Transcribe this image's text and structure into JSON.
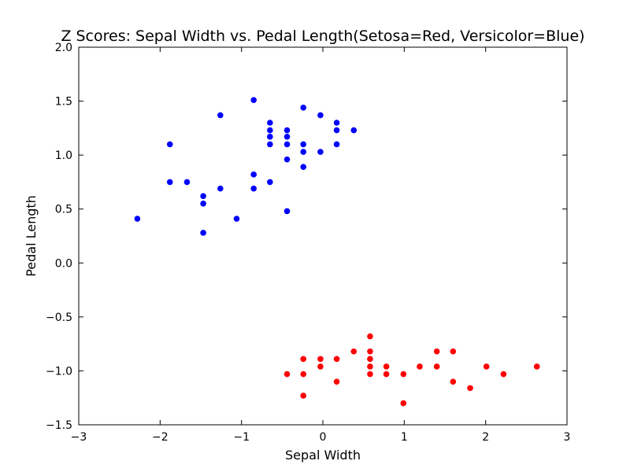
{
  "chart_data": {
    "type": "scatter",
    "title": "Z Scores: Sepal Width vs. Pedal Length(Setosa=Red, Versicolor=Blue)",
    "xlabel": "Sepal Width",
    "ylabel": "Pedal Length",
    "xlim": [
      -3,
      3
    ],
    "ylim": [
      -1.5,
      2.0
    ],
    "x_ticks": [
      -3,
      -2,
      -1,
      0,
      1,
      2,
      3
    ],
    "x_tick_labels": [
      "−3",
      "−2",
      "−1",
      "0",
      "1",
      "2",
      "3"
    ],
    "y_ticks": [
      -1.5,
      -1.0,
      -0.5,
      0.0,
      0.5,
      1.0,
      1.5,
      2.0
    ],
    "y_tick_labels": [
      "−1.5",
      "−1.0",
      "−0.5",
      "0.0",
      "0.5",
      "1.0",
      "1.5",
      "2.0"
    ],
    "grid": false,
    "series": [
      {
        "name": "Versicolor",
        "color": "#0000ff",
        "points": [
          [
            -2.28,
            0.41
          ],
          [
            -1.88,
            1.1
          ],
          [
            -1.88,
            0.75
          ],
          [
            -1.67,
            0.75
          ],
          [
            -1.47,
            0.62
          ],
          [
            -1.47,
            0.55
          ],
          [
            -1.47,
            0.28
          ],
          [
            -1.26,
            1.37
          ],
          [
            -1.26,
            0.69
          ],
          [
            -1.06,
            0.41
          ],
          [
            -0.85,
            1.51
          ],
          [
            -0.85,
            0.82
          ],
          [
            -0.85,
            0.69
          ],
          [
            -0.65,
            1.3
          ],
          [
            -0.65,
            1.23
          ],
          [
            -0.65,
            1.17
          ],
          [
            -0.65,
            1.1
          ],
          [
            -0.65,
            0.75
          ],
          [
            -0.44,
            1.23
          ],
          [
            -0.44,
            1.17
          ],
          [
            -0.44,
            1.1
          ],
          [
            -0.44,
            0.96
          ],
          [
            -0.44,
            0.48
          ],
          [
            -0.24,
            1.44
          ],
          [
            -0.24,
            1.1
          ],
          [
            -0.24,
            1.03
          ],
          [
            -0.24,
            0.89
          ],
          [
            -0.03,
            1.37
          ],
          [
            -0.03,
            1.03
          ],
          [
            0.17,
            1.3
          ],
          [
            0.17,
            1.23
          ],
          [
            0.17,
            1.1
          ],
          [
            0.38,
            1.23
          ]
        ]
      },
      {
        "name": "Setosa",
        "color": "#ff0000",
        "points": [
          [
            -0.44,
            -1.03
          ],
          [
            -0.24,
            -0.89
          ],
          [
            -0.24,
            -1.03
          ],
          [
            -0.24,
            -1.23
          ],
          [
            -0.03,
            -0.89
          ],
          [
            -0.03,
            -0.96
          ],
          [
            0.17,
            -0.89
          ],
          [
            0.17,
            -1.1
          ],
          [
            0.38,
            -0.82
          ],
          [
            0.58,
            -0.68
          ],
          [
            0.58,
            -0.82
          ],
          [
            0.58,
            -0.89
          ],
          [
            0.58,
            -0.96
          ],
          [
            0.58,
            -1.03
          ],
          [
            0.78,
            -0.96
          ],
          [
            0.78,
            -1.03
          ],
          [
            0.99,
            -1.03
          ],
          [
            0.99,
            -1.3
          ],
          [
            1.19,
            -0.96
          ],
          [
            1.4,
            -0.82
          ],
          [
            1.4,
            -0.96
          ],
          [
            1.6,
            -0.82
          ],
          [
            1.6,
            -1.1
          ],
          [
            1.81,
            -1.16
          ],
          [
            2.01,
            -0.96
          ],
          [
            2.22,
            -1.03
          ],
          [
            2.63,
            -0.96
          ]
        ]
      }
    ]
  }
}
